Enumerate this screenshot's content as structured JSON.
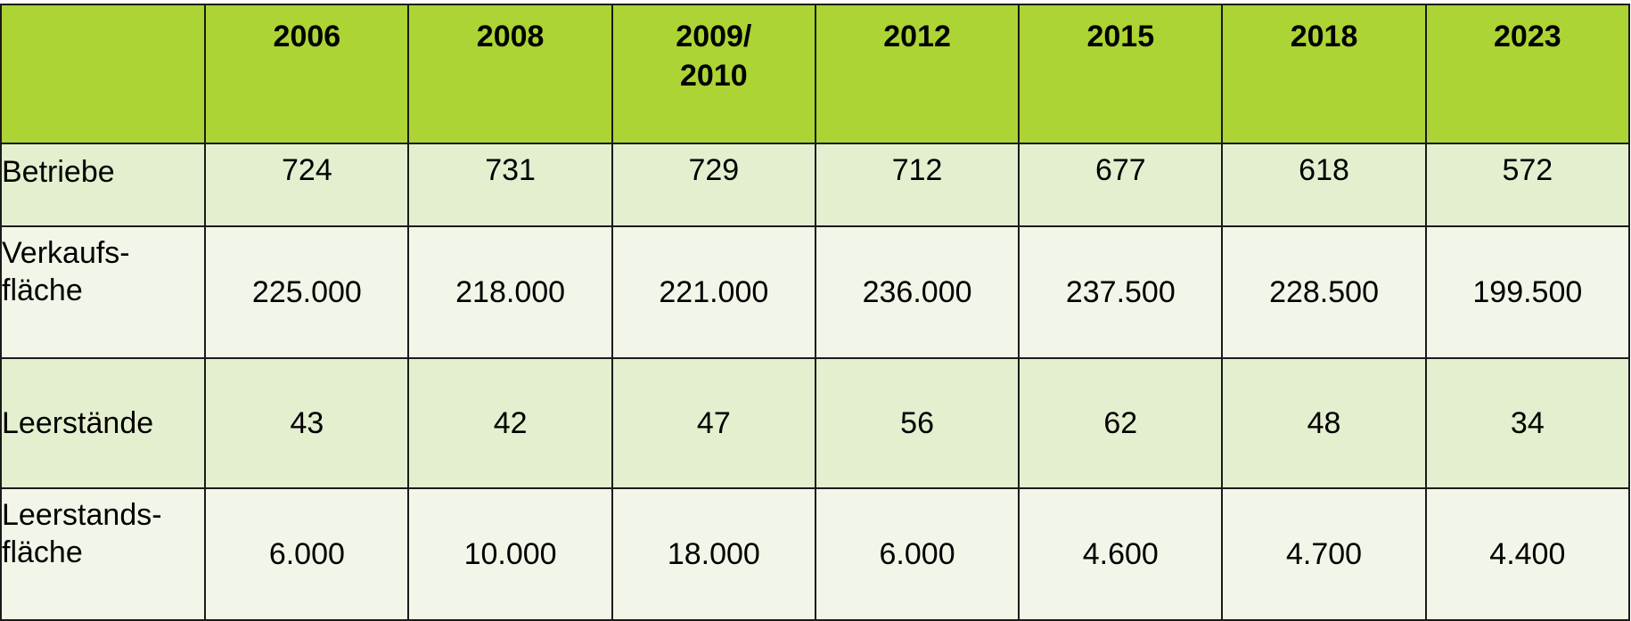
{
  "header": {
    "corner": "",
    "years": [
      [
        "2006"
      ],
      [
        "2008"
      ],
      [
        "2009/",
        "2010"
      ],
      [
        "2012"
      ],
      [
        "2015"
      ],
      [
        "2018"
      ],
      [
        "2023"
      ]
    ]
  },
  "rows": [
    {
      "label": [
        "Betriebe"
      ],
      "values": [
        "724",
        "731",
        "729",
        "712",
        "677",
        "618",
        "572"
      ]
    },
    {
      "label": [
        "Verkaufs-",
        "fläche"
      ],
      "values": [
        "225.000",
        "218.000",
        "221.000",
        "236.000",
        "237.500",
        "228.500",
        "199.500"
      ]
    },
    {
      "label": [
        "Leerstände"
      ],
      "values": [
        "43",
        "42",
        "47",
        "56",
        "62",
        "48",
        "34"
      ]
    },
    {
      "label": [
        "Leerstands-",
        "fläche"
      ],
      "values": [
        "6.000",
        "10.000",
        "18.000",
        "6.000",
        "4.600",
        "4.700",
        "4.400"
      ]
    }
  ],
  "colors": {
    "header_bg": "#acd434",
    "row_shade_a": "#e3efcf",
    "row_shade_b": "#f1f6e8",
    "border": "#1a1a1a"
  }
}
